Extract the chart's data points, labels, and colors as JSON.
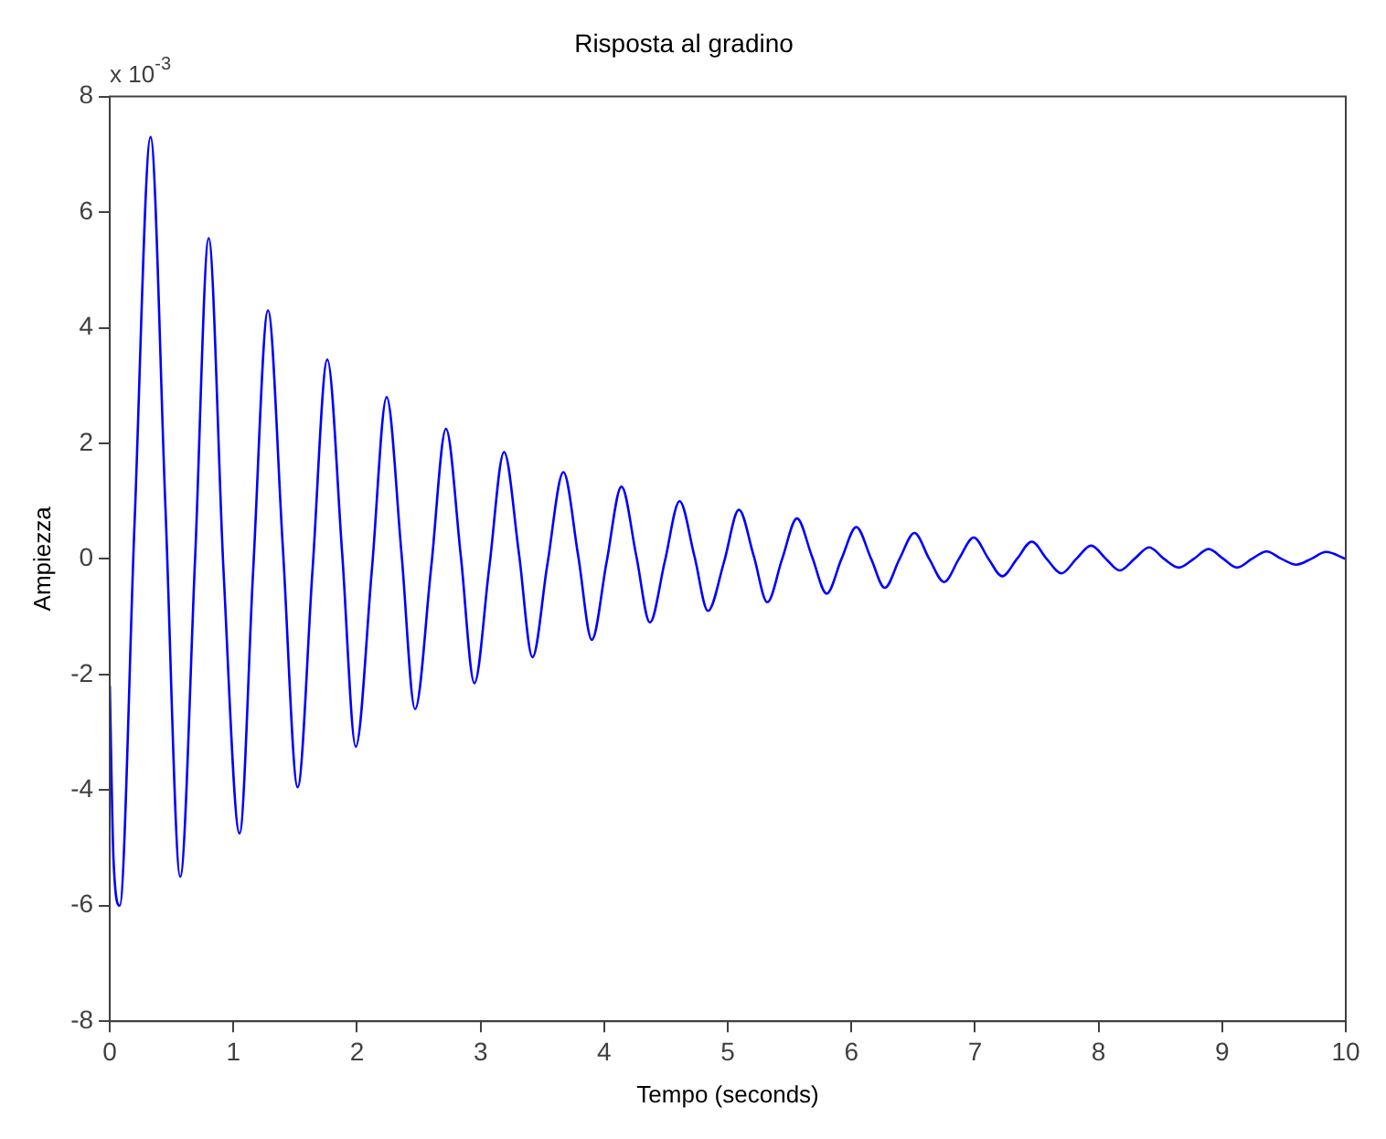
{
  "chart_data": {
    "type": "line",
    "title": "Risposta al gradino",
    "xlabel": "Tempo (seconds)",
    "ylabel": "Ampiezza",
    "annotations": [
      "x 10$^{-3}$"
    ],
    "x": [
      0,
      0.03,
      0.08,
      0.2,
      0.33,
      0.45,
      0.57,
      0.69,
      0.8,
      0.92,
      1.05,
      1.16,
      1.28,
      1.4,
      1.52,
      1.64,
      1.76,
      1.88,
      1.99,
      2.12,
      2.24,
      2.36,
      2.47,
      2.6,
      2.72,
      2.84,
      2.95,
      3.07,
      3.19,
      3.31,
      3.42,
      3.54,
      3.67,
      3.79,
      3.9,
      4.02,
      4.14,
      4.26,
      4.37,
      4.49,
      4.61,
      4.73,
      4.84,
      4.97,
      5.09,
      5.21,
      5.32,
      5.44,
      5.56,
      5.68,
      5.8,
      5.92,
      6.04,
      6.16,
      6.27,
      6.39,
      6.51,
      6.63,
      6.75,
      6.87,
      6.99,
      7.11,
      7.22,
      7.34,
      7.46,
      7.58,
      7.7,
      7.82,
      7.94,
      8.06,
      8.17,
      8.29,
      8.41,
      8.53,
      8.65,
      8.77,
      8.89,
      9.01,
      9.12,
      9.24,
      9.36,
      9.48,
      9.6,
      9.72,
      9.84,
      10
    ],
    "series": [
      {
        "color": "#0000ff",
        "values": [
          -2.2,
          -5.2,
          -6.0,
          0.6,
          7.3,
          0.9,
          -5.5,
          0,
          5.55,
          -0.2,
          -4.75,
          -0.2,
          4.3,
          0.2,
          -3.95,
          -0.2,
          3.45,
          0.1,
          -3.25,
          -0.2,
          2.8,
          0.1,
          -2.6,
          -0.15,
          2.25,
          0.05,
          -2.15,
          -0.15,
          1.85,
          0.1,
          -1.7,
          -0.1,
          1.5,
          0.05,
          -1.4,
          -0.05,
          1.25,
          0.05,
          -1.1,
          -0.05,
          1.0,
          0.05,
          -0.9,
          -0.05,
          0.85,
          0.05,
          -0.75,
          0,
          0.7,
          0.05,
          -0.6,
          0,
          0.55,
          0,
          -0.5,
          0,
          0.45,
          0,
          -0.4,
          0,
          0.37,
          0,
          -0.3,
          0,
          0.3,
          0,
          -0.25,
          0,
          0.23,
          0,
          -0.2,
          0,
          0.2,
          0,
          -0.15,
          0,
          0.17,
          0,
          -0.15,
          0,
          0.13,
          0,
          -0.1,
          0,
          0.12,
          0
        ]
      }
    ],
    "xlim": [
      0,
      10
    ],
    "xticks": [
      0,
      1,
      2,
      3,
      4,
      5,
      6,
      7,
      8,
      9,
      10
    ],
    "ylim": [
      -8,
      8
    ],
    "yticks": [
      -8,
      -6,
      -4,
      -2,
      0,
      2,
      4,
      6,
      8
    ],
    "grid": false,
    "legend": false,
    "marker": "none",
    "line_style": "solid"
  }
}
